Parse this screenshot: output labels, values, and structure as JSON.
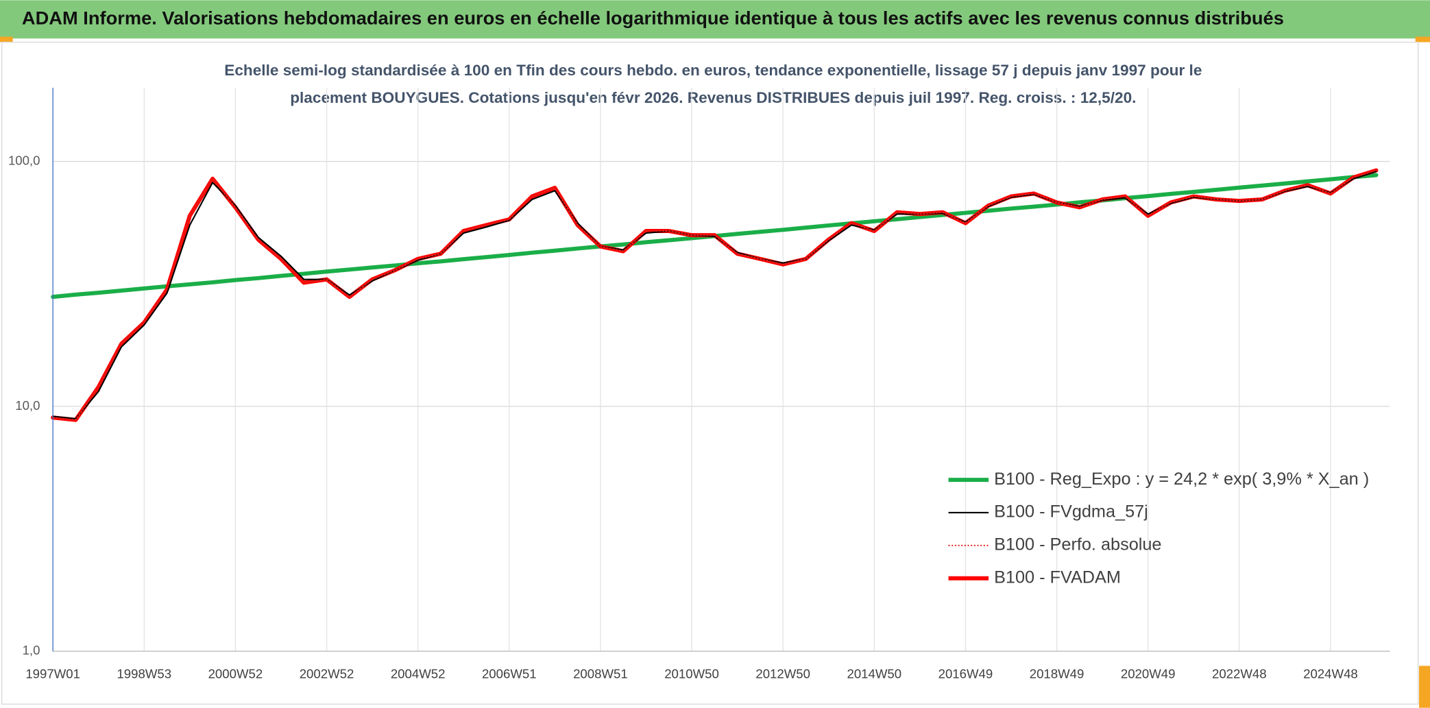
{
  "chart_data": {
    "type": "line",
    "title": "ADAM Informe. Valorisations hebdomadaires en euros en échelle logarithmique identique à tous les actifs avec les revenus connus distribués",
    "subtitle": [
      "Echelle semi-log standardisée à 100 en Tfin des cours hebdo. en euros, tendance exponentielle, lissage 57 j depuis janv 1997 pour le",
      "placement BOUYGUES. Cotations jusqu'en févr 2026. Revenus DISTRIBUES depuis juil 1997. Reg. croiss. : 12,5/20."
    ],
    "categories": [
      "1997W01",
      null,
      null,
      null,
      "1998W53",
      null,
      null,
      null,
      "2000W52",
      null,
      null,
      null,
      "2002W52",
      null,
      null,
      null,
      "2004W52",
      null,
      null,
      null,
      "2006W51",
      null,
      null,
      null,
      "2008W51",
      null,
      null,
      null,
      "2010W50",
      null,
      null,
      null,
      "2012W50",
      null,
      null,
      null,
      "2014W50",
      null,
      null,
      null,
      "2016W49",
      null,
      null,
      null,
      "2018W49",
      null,
      null,
      null,
      "2020W49",
      null,
      null,
      null,
      "2022W48",
      null,
      null,
      null,
      "2024W48",
      null,
      null
    ],
    "series": [
      {
        "name": "B100 - Reg_Expo : y = 24,2 * exp( 3,9% *  X_an )",
        "color": "#1aae48",
        "style": "thick",
        "values": [
          28.0,
          28.6,
          29.1,
          29.7,
          30.3,
          30.9,
          31.5,
          32.1,
          32.8,
          33.4,
          34.1,
          34.8,
          35.5,
          36.2,
          36.9,
          37.6,
          38.4,
          39.1,
          39.9,
          40.7,
          41.5,
          42.4,
          43.2,
          44.1,
          45.0,
          45.8,
          46.8,
          47.7,
          48.6,
          49.6,
          50.6,
          51.6,
          52.6,
          53.7,
          54.8,
          55.9,
          57.0,
          58.1,
          59.3,
          60.5,
          61.7,
          62.9,
          64.2,
          65.4,
          66.7,
          68.1,
          69.4,
          70.8,
          72.2,
          73.7,
          75.1,
          76.6,
          78.2,
          79.7,
          81.3,
          82.9,
          84.6,
          86.3,
          88.0
        ]
      },
      {
        "name": "B100 - FVgdma_57j",
        "color": "#000000",
        "style": "thin",
        "values": [
          9.1,
          8.9,
          11.5,
          17.5,
          21.5,
          29,
          55,
          82,
          66,
          49,
          41,
          33,
          33,
          28.5,
          32.5,
          36,
          39.5,
          42,
          51,
          54,
          57.5,
          70,
          76,
          56,
          45,
          43.5,
          51,
          52,
          50,
          49.5,
          42.5,
          40,
          38.5,
          40,
          47.5,
          55,
          52.5,
          61,
          61,
          61.5,
          56.5,
          65.5,
          71.5,
          73.5,
          68,
          65.5,
          69.5,
          71,
          61,
          67.5,
          71.5,
          70,
          69,
          70,
          75.5,
          79,
          74.5,
          85,
          91
        ]
      },
      {
        "name": "B100 - Perfo. absolue",
        "color": "#e0201b",
        "style": "dotted",
        "values": [
          9.0,
          8.8,
          12,
          18,
          22,
          30,
          60,
          85,
          65,
          48,
          40,
          32,
          33,
          28,
          33,
          36,
          40,
          42,
          52,
          55,
          58,
          72,
          78,
          55,
          45,
          43,
          52,
          52,
          50,
          50,
          42,
          40,
          38,
          40,
          48,
          56,
          52,
          62,
          61,
          62,
          56,
          66,
          72,
          74,
          68,
          65,
          70,
          72,
          60,
          68,
          72,
          70,
          69,
          70,
          76,
          80,
          74,
          86,
          92
        ]
      },
      {
        "name": "B100 - FVADAM",
        "color": "#ff0000",
        "style": "thick",
        "values": [
          9.0,
          8.8,
          12,
          18,
          22,
          30,
          60,
          85,
          65,
          48,
          40,
          32,
          33,
          28,
          33,
          36,
          40,
          42,
          52,
          55,
          58,
          72,
          78,
          55,
          45,
          43,
          52,
          52,
          50,
          50,
          42,
          40,
          38,
          40,
          48,
          56,
          52,
          62,
          61,
          62,
          56,
          66,
          72,
          74,
          68,
          65,
          70,
          72,
          60,
          68,
          72,
          70,
          69,
          70,
          76,
          80,
          74,
          86,
          92
        ]
      }
    ],
    "log_scale": true,
    "ylim": [
      1,
      200
    ],
    "yticks": [
      {
        "value": 1,
        "label": "1,0"
      },
      {
        "value": 10,
        "label": "10,0"
      },
      {
        "value": 100,
        "label": "100,0"
      }
    ],
    "grid": true,
    "legend": "lower right"
  }
}
